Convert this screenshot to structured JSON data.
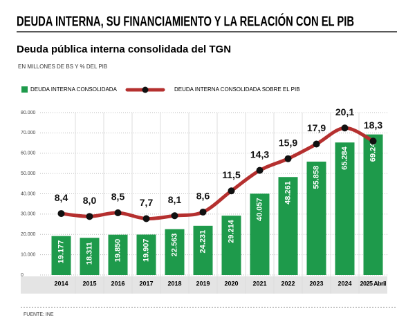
{
  "header": {
    "title": "DEUDA INTERNA, SU FINANCIAMIENTO Y LA RELACIÓN CON EL PIB"
  },
  "chart_data": {
    "type": "bar",
    "title": "Deuda pública interna consolidada del TGN",
    "subtitle": "EN MILLONES DE BS Y % DEL PIB",
    "source": "FUENTE: INE",
    "categories": [
      "2014",
      "2015",
      "2016",
      "2017",
      "2018",
      "2019",
      "2020",
      "2021",
      "2022",
      "2023",
      "2024",
      "2025 Abril"
    ],
    "series": [
      {
        "name": "DEUDA INTERNA CONSOLIDADA",
        "type": "bar",
        "color": "#1e9a4b",
        "values": [
          19177,
          18311,
          19850,
          19907,
          22563,
          24231,
          29214,
          40057,
          48261,
          55858,
          65284,
          69240
        ],
        "value_labels": [
          "19.177",
          "18.311",
          "19.850",
          "19.907",
          "22.563",
          "24.231",
          "29.214",
          "40.057",
          "48.261",
          "55.858",
          "65.284",
          "69.240"
        ]
      },
      {
        "name": "DEUDA INTERNA CONSOLIDADA SOBRE EL PIB",
        "type": "line",
        "color": "#b5302f",
        "axis": "y2",
        "values": [
          8.4,
          8.0,
          8.5,
          7.7,
          8.1,
          8.6,
          11.5,
          14.3,
          15.9,
          17.9,
          20.1,
          18.3
        ],
        "value_labels": [
          "8,4",
          "8,0",
          "8,5",
          "7,7",
          "8,1",
          "8,6",
          "11,5",
          "14,3",
          "15,9",
          "17,9",
          "20,1",
          "18,3"
        ]
      }
    ],
    "ylim": [
      0,
      80000
    ],
    "yticks": [
      0,
      {
        "value": 10000,
        "label": "10.000"
      },
      {
        "value": 20000,
        "label": "20.000"
      },
      {
        "value": 30000,
        "label": "30.000"
      },
      {
        "value": 40000,
        "label": "40.000"
      },
      {
        "value": 50000,
        "label": "50.000"
      },
      {
        "value": 60000,
        "label": "60.000"
      },
      {
        "value": 70000,
        "label": "70.000"
      },
      {
        "value": 80000,
        "label": "80.000"
      }
    ],
    "y2lim": [
      0,
      22.2
    ],
    "grid": true
  }
}
